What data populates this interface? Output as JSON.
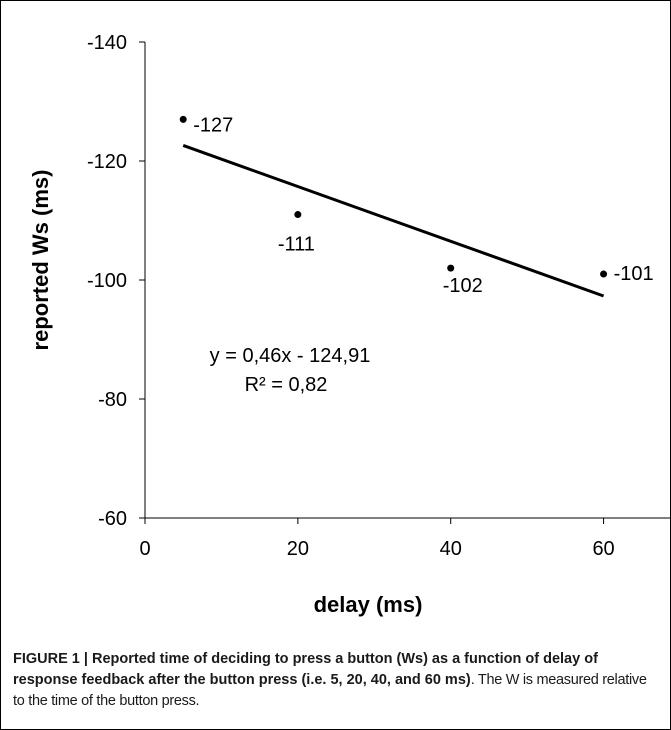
{
  "chart_data": {
    "type": "scatter",
    "xlabel": "delay (ms)",
    "ylabel": "reported Ws (ms)",
    "xlim": [
      0,
      70
    ],
    "ylim": [
      -140,
      -60
    ],
    "y_axis_reversed": true,
    "xticks": [
      0,
      20,
      40,
      60
    ],
    "yticks": [
      -140,
      -120,
      -100,
      -80,
      -60
    ],
    "grid": false,
    "points": [
      {
        "x": 5,
        "y": -127,
        "label": "-127"
      },
      {
        "x": 20,
        "y": -111,
        "label": "-111"
      },
      {
        "x": 40,
        "y": -102,
        "label": "-102"
      },
      {
        "x": 60,
        "y": -101,
        "label": "-101"
      }
    ],
    "trendline": {
      "slope": 0.46,
      "intercept": -124.91,
      "x_range": [
        5,
        60
      ],
      "equation": "y = 0,46x - 124,91",
      "r_squared": "R² = 0,82"
    }
  },
  "caption": {
    "bold": "FIGURE 1 | Reported time of deciding to press a button (Ws) as a function of delay of response feedback after the button press (i.e. 5, 20, 40, and 60 ms)",
    "normal": ". The W is measured relative to the time of the button press."
  }
}
